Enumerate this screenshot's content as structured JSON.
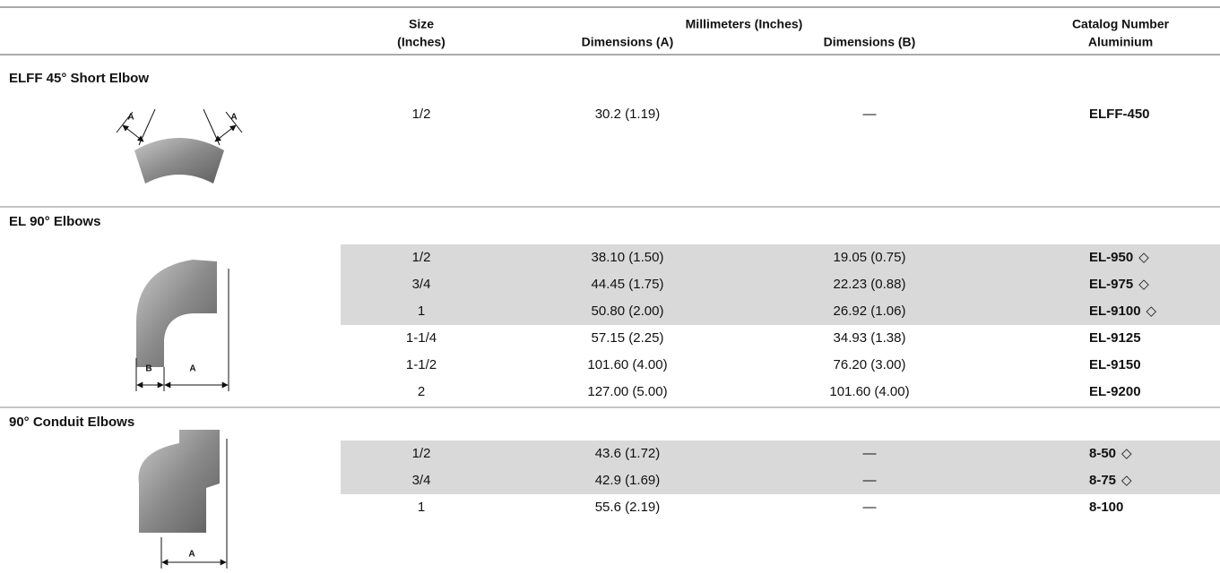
{
  "header": {
    "size": "Size",
    "size_unit": "(Inches)",
    "millimeters": "Millimeters (Inches)",
    "dim_a": "Dimensions (A)",
    "dim_b": "Dimensions (B)",
    "catalog": "Catalog Number",
    "material": "Aluminium"
  },
  "sections": [
    {
      "title": "ELFF 45° Short Elbow",
      "figure_labels": [
        "A",
        "A"
      ],
      "rows": [
        {
          "size": "1/2",
          "dim_a": "30.2 (1.19)",
          "dim_b": "—",
          "catalog": "ELFF-450",
          "shaded": false
        }
      ]
    },
    {
      "title": "EL 90° Elbows",
      "figure_labels": [
        "B",
        "A"
      ],
      "rows": [
        {
          "size": "1/2",
          "dim_a": "38.10 (1.50)",
          "dim_b": "19.05 (0.75)",
          "catalog": "EL-950",
          "marker": "◇",
          "shaded": true
        },
        {
          "size": "3/4",
          "dim_a": "44.45 (1.75)",
          "dim_b": "22.23 (0.88)",
          "catalog": "EL-975",
          "marker": "◇",
          "shaded": true
        },
        {
          "size": "1",
          "dim_a": "50.80 (2.00)",
          "dim_b": "26.92 (1.06)",
          "catalog": "EL-9100",
          "marker": "◇",
          "shaded": true
        },
        {
          "size": "1-1/4",
          "dim_a": "57.15 (2.25)",
          "dim_b": "34.93 (1.38)",
          "catalog": "EL-9125",
          "shaded": false
        },
        {
          "size": "1-1/2",
          "dim_a": "101.60 (4.00)",
          "dim_b": "76.20 (3.00)",
          "catalog": "EL-9150",
          "shaded": false
        },
        {
          "size": "2",
          "dim_a": "127.00 (5.00)",
          "dim_b": "101.60 (4.00)",
          "catalog": "EL-9200",
          "shaded": false
        }
      ]
    },
    {
      "title": "90° Conduit Elbows",
      "figure_labels": [
        "A"
      ],
      "rows": [
        {
          "size": "1/2",
          "dim_a": "43.6 (1.72)",
          "dim_b": "—",
          "catalog": "8-50",
          "marker": "◇",
          "shaded": true
        },
        {
          "size": "3/4",
          "dim_a": "42.9 (1.69)",
          "dim_b": "—",
          "catalog": "8-75",
          "marker": "◇",
          "shaded": true
        },
        {
          "size": "1",
          "dim_a": "55.6 (2.19)",
          "dim_b": "—",
          "catalog": "8-100",
          "shaded": false
        }
      ]
    }
  ]
}
